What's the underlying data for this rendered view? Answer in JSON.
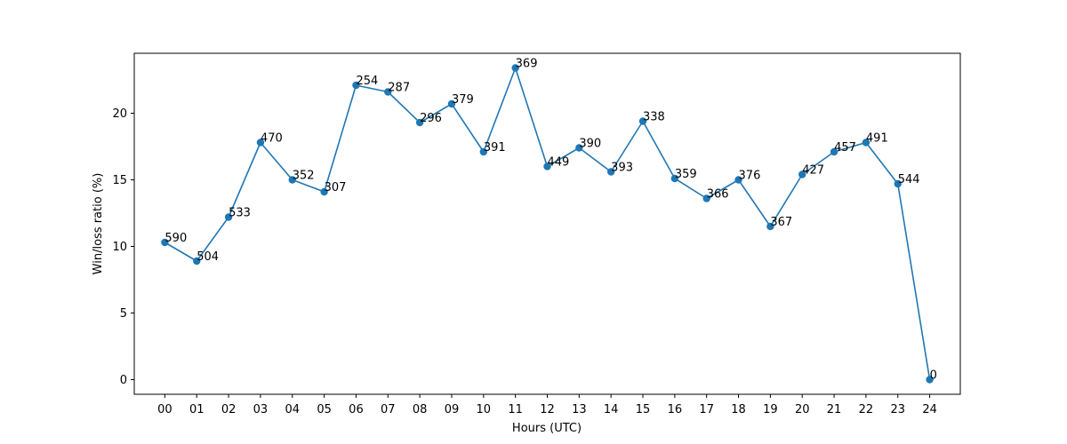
{
  "chart_data": {
    "type": "line",
    "title": "",
    "xlabel": "Hours (UTC)",
    "ylabel": "Win/loss ratio (%)",
    "categories": [
      "00",
      "01",
      "02",
      "03",
      "04",
      "05",
      "06",
      "07",
      "08",
      "09",
      "10",
      "11",
      "12",
      "13",
      "14",
      "15",
      "16",
      "17",
      "18",
      "19",
      "20",
      "21",
      "22",
      "23",
      "24"
    ],
    "series": [
      {
        "color": "#1f77b4",
        "values": [
          10.3,
          8.9,
          12.2,
          17.8,
          15.0,
          14.1,
          22.1,
          21.6,
          19.3,
          20.7,
          17.1,
          23.4,
          16.0,
          17.4,
          15.6,
          19.4,
          15.1,
          13.6,
          15.0,
          11.5,
          15.4,
          17.1,
          17.8,
          14.7,
          0.0
        ],
        "labels": [
          "590",
          "504",
          "533",
          "470",
          "352",
          "307",
          "254",
          "287",
          "296",
          "379",
          "391",
          "369",
          "449",
          "390",
          "393",
          "338",
          "359",
          "366",
          "376",
          "367",
          "427",
          "457",
          "491",
          "544",
          "0"
        ]
      }
    ],
    "ylim": [
      -1.1,
      24.5
    ],
    "yticks": [
      0,
      5,
      10,
      15,
      20
    ],
    "grid": false,
    "legend": "none"
  }
}
